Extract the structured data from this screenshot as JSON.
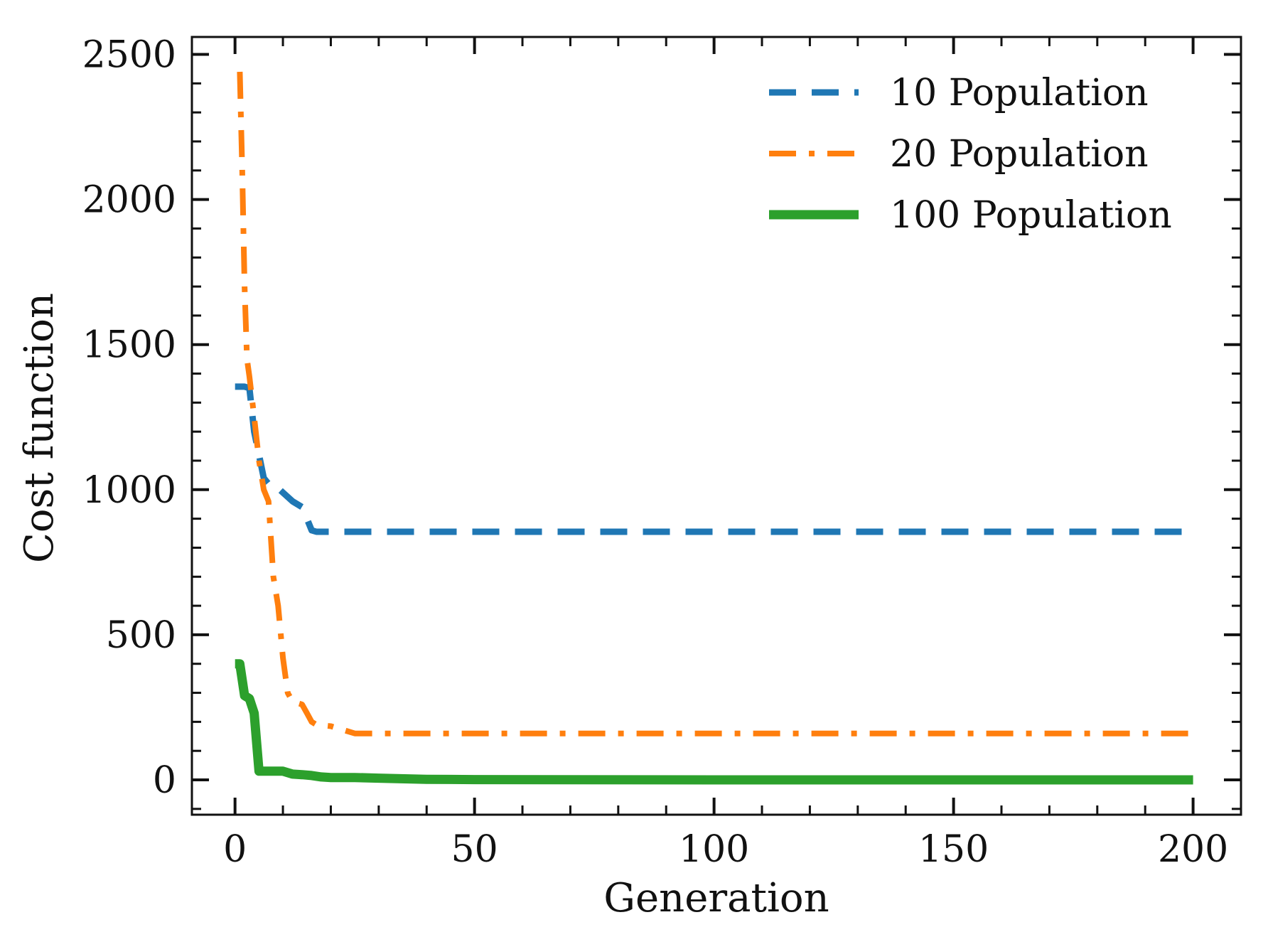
{
  "chart_data": {
    "type": "line",
    "title": "",
    "xlabel": "Generation",
    "ylabel": "Cost function",
    "xlim": [
      -9,
      210
    ],
    "ylim": [
      -120,
      2560
    ],
    "xticks": [
      0,
      50,
      100,
      150,
      200
    ],
    "xtick_labels": [
      "0",
      "50",
      "100",
      "150",
      "200"
    ],
    "yticks": [
      0,
      500,
      1000,
      1500,
      2000,
      2500
    ],
    "ytick_labels": [
      "0",
      "500",
      "1000",
      "1500",
      "2000",
      "2500"
    ],
    "x_minor_step": 10,
    "y_minor_step": 100,
    "grid": false,
    "legend_position": "top-right",
    "series": [
      {
        "name": "10 Population",
        "color": "#1f77b4",
        "style": "dashed",
        "x": [
          0,
          2,
          3,
          4,
          5,
          6,
          7,
          8,
          10,
          12,
          14,
          15,
          16,
          17,
          20,
          30,
          50,
          100,
          150,
          200
        ],
        "y": [
          1355,
          1355,
          1350,
          1200,
          1120,
          1040,
          1020,
          1020,
          990,
          960,
          940,
          900,
          860,
          855,
          855,
          855,
          855,
          855,
          855,
          855
        ]
      },
      {
        "name": "20 Population",
        "color": "#ff7f0e",
        "style": "dashdot",
        "x": [
          1,
          1.5,
          2,
          2.5,
          3,
          4,
          5,
          6,
          7,
          8,
          9,
          10,
          11,
          12,
          14,
          15,
          16,
          17,
          20,
          25,
          30,
          50,
          100,
          150,
          200
        ],
        "y": [
          2440,
          2100,
          1700,
          1450,
          1390,
          1250,
          1100,
          1000,
          960,
          700,
          600,
          420,
          300,
          270,
          260,
          230,
          200,
          190,
          185,
          160,
          160,
          160,
          160,
          160,
          160
        ]
      },
      {
        "name": "100 Population",
        "color": "#2ca02c",
        "style": "solid",
        "x": [
          0,
          1,
          2,
          3,
          4,
          4.5,
          5,
          6,
          7,
          8,
          9,
          10,
          12,
          14,
          16,
          18,
          20,
          25,
          30,
          40,
          50,
          100,
          150,
          200
        ],
        "y": [
          400,
          400,
          290,
          280,
          230,
          130,
          30,
          30,
          30,
          30,
          30,
          30,
          20,
          18,
          15,
          10,
          8,
          8,
          6,
          2,
          1,
          0,
          0,
          0
        ]
      }
    ]
  }
}
